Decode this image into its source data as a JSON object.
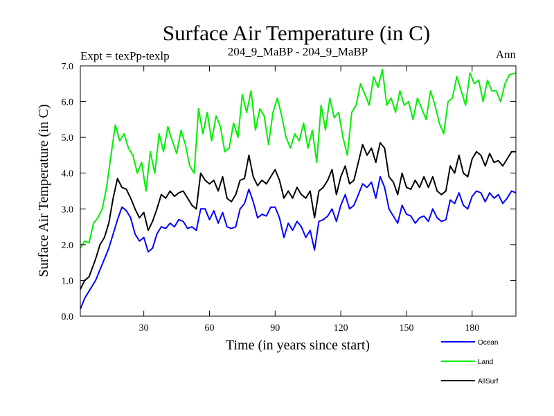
{
  "chart_data": {
    "type": "line",
    "title": "Surface Air Temperature (in C)",
    "left_label": "Expt = texPp-texlp",
    "center_label": "204_9_MaBP - 204_9_MaBP",
    "right_label": "Ann",
    "xlabel": "Time (in years since start)",
    "ylabel": "Surface Air Temperature (in C)",
    "xlim": [
      1,
      200
    ],
    "ylim": [
      0.0,
      7.0
    ],
    "xticks": [
      30,
      60,
      90,
      120,
      150,
      180
    ],
    "xtick_labels": [
      "30",
      "60",
      "90",
      "120",
      "150",
      "180"
    ],
    "yticks": [
      0,
      1,
      2,
      3,
      4,
      5,
      6,
      7
    ],
    "ytick_labels": [
      "0.0",
      "1.0",
      "2.0",
      "3.0",
      "4.0",
      "5.0",
      "6.0",
      "7.0"
    ],
    "legend": [
      {
        "name": "Ocean",
        "color": "#0000ff"
      },
      {
        "name": "Land",
        "color": "#00ee00"
      },
      {
        "name": "AllSurf",
        "color": "#000000"
      }
    ],
    "series": [
      {
        "name": "Ocean",
        "color": "#0000ff",
        "x": [
          1,
          3,
          5,
          8,
          10,
          12,
          14,
          16,
          18,
          20,
          22,
          24,
          26,
          28,
          30,
          32,
          34,
          36,
          38,
          40,
          42,
          44,
          46,
          48,
          50,
          52,
          54,
          56,
          58,
          60,
          62,
          64,
          66,
          68,
          70,
          72,
          74,
          76,
          78,
          80,
          82,
          84,
          86,
          88,
          90,
          92,
          94,
          96,
          98,
          100,
          102,
          104,
          106,
          108,
          110,
          112,
          114,
          116,
          118,
          120,
          122,
          124,
          126,
          128,
          130,
          132,
          134,
          136,
          138,
          140,
          142,
          144,
          146,
          148,
          150,
          152,
          154,
          156,
          158,
          160,
          162,
          164,
          166,
          168,
          170,
          172,
          174,
          176,
          178,
          180,
          182,
          184,
          186,
          188,
          190,
          192,
          194,
          196,
          198,
          200
        ],
        "values": [
          0.2,
          0.5,
          0.7,
          1.0,
          1.3,
          1.6,
          1.9,
          2.3,
          2.7,
          3.05,
          2.95,
          2.75,
          2.3,
          2.1,
          2.2,
          1.8,
          1.9,
          2.3,
          2.5,
          2.45,
          2.6,
          2.5,
          2.7,
          2.65,
          2.45,
          2.5,
          2.4,
          3.0,
          3.0,
          2.7,
          2.95,
          2.6,
          2.9,
          2.5,
          2.45,
          2.5,
          3.0,
          3.15,
          3.55,
          3.2,
          2.75,
          2.85,
          2.8,
          3.05,
          3.05,
          2.75,
          2.2,
          2.6,
          2.4,
          2.65,
          2.5,
          2.2,
          2.4,
          1.85,
          2.65,
          2.7,
          2.8,
          3.0,
          2.65,
          3.1,
          3.4,
          3.0,
          3.1,
          3.4,
          3.7,
          3.6,
          3.75,
          3.3,
          3.9,
          3.6,
          3.0,
          2.8,
          2.6,
          3.1,
          2.85,
          2.8,
          2.6,
          2.75,
          2.8,
          2.65,
          3.0,
          2.75,
          2.65,
          2.7,
          3.25,
          3.15,
          3.45,
          3.1,
          3.0,
          3.35,
          3.5,
          3.45,
          3.2,
          3.45,
          3.3,
          3.4,
          3.15,
          3.3,
          3.5,
          3.45
        ]
      },
      {
        "name": "Land",
        "color": "#00ee00",
        "x": [
          1,
          3,
          5,
          7,
          9,
          11,
          13,
          15,
          17,
          19,
          21,
          23,
          25,
          27,
          29,
          31,
          33,
          35,
          37,
          39,
          41,
          43,
          45,
          47,
          49,
          51,
          53,
          55,
          57,
          59,
          61,
          63,
          65,
          67,
          69,
          71,
          73,
          75,
          77,
          79,
          81,
          83,
          85,
          87,
          89,
          91,
          93,
          95,
          97,
          99,
          101,
          103,
          105,
          107,
          109,
          111,
          113,
          115,
          117,
          119,
          121,
          123,
          125,
          127,
          129,
          131,
          133,
          135,
          137,
          139,
          141,
          143,
          145,
          147,
          149,
          151,
          153,
          155,
          157,
          159,
          161,
          163,
          165,
          167,
          169,
          171,
          173,
          175,
          177,
          179,
          181,
          183,
          185,
          187,
          189,
          191,
          193,
          195,
          197,
          200
        ],
        "values": [
          1.9,
          2.1,
          2.05,
          2.6,
          2.75,
          3.0,
          3.6,
          4.5,
          5.35,
          4.9,
          5.1,
          4.7,
          4.5,
          4.0,
          4.3,
          3.5,
          4.6,
          4.0,
          5.1,
          4.6,
          5.3,
          4.9,
          4.55,
          5.2,
          4.8,
          4.2,
          4.0,
          5.8,
          5.1,
          5.7,
          4.9,
          5.6,
          5.3,
          4.6,
          4.7,
          5.4,
          5.0,
          6.2,
          5.7,
          6.3,
          5.2,
          5.8,
          5.6,
          4.8,
          5.7,
          6.1,
          5.6,
          5.0,
          4.7,
          5.1,
          4.9,
          5.4,
          4.7,
          5.2,
          4.3,
          5.9,
          5.2,
          6.1,
          5.55,
          5.7,
          5.0,
          4.5,
          5.7,
          5.9,
          6.5,
          6.2,
          5.9,
          6.7,
          6.4,
          6.9,
          5.9,
          6.1,
          5.7,
          6.3,
          5.9,
          6.0,
          5.5,
          6.1,
          5.8,
          5.5,
          6.3,
          5.9,
          5.4,
          5.1,
          6.0,
          6.1,
          6.7,
          6.3,
          5.9,
          6.8,
          6.5,
          6.6,
          6.0,
          6.6,
          6.3,
          6.3,
          6.0,
          6.5,
          6.75,
          6.8
        ]
      },
      {
        "name": "AllSurf",
        "color": "#000000",
        "x": [
          1,
          3,
          5,
          8,
          10,
          12,
          14,
          16,
          18,
          20,
          22,
          24,
          26,
          28,
          30,
          32,
          34,
          36,
          38,
          40,
          42,
          44,
          46,
          48,
          50,
          52,
          54,
          56,
          58,
          60,
          62,
          64,
          66,
          68,
          70,
          72,
          74,
          76,
          78,
          80,
          82,
          84,
          86,
          88,
          90,
          92,
          94,
          96,
          98,
          100,
          102,
          104,
          106,
          108,
          110,
          112,
          114,
          116,
          118,
          120,
          122,
          124,
          126,
          128,
          130,
          132,
          134,
          136,
          138,
          140,
          142,
          144,
          146,
          148,
          150,
          152,
          154,
          156,
          158,
          160,
          162,
          164,
          166,
          168,
          170,
          172,
          174,
          176,
          178,
          180,
          182,
          184,
          186,
          188,
          190,
          192,
          194,
          196,
          198,
          200
        ],
        "values": [
          0.75,
          1.0,
          1.1,
          1.6,
          2.0,
          2.2,
          2.6,
          3.3,
          3.85,
          3.6,
          3.55,
          3.3,
          3.0,
          2.75,
          2.9,
          2.4,
          2.65,
          3.0,
          3.4,
          3.3,
          3.5,
          3.35,
          3.45,
          3.5,
          3.3,
          3.1,
          3.0,
          4.0,
          3.8,
          3.7,
          3.8,
          3.5,
          3.9,
          3.3,
          3.2,
          3.4,
          3.8,
          3.85,
          4.5,
          3.9,
          3.65,
          3.8,
          3.7,
          3.9,
          4.1,
          3.8,
          3.3,
          3.5,
          3.3,
          3.6,
          3.4,
          3.3,
          3.5,
          2.75,
          3.5,
          3.6,
          3.8,
          4.1,
          3.4,
          3.9,
          4.2,
          3.7,
          3.8,
          4.3,
          4.8,
          4.5,
          4.7,
          4.3,
          4.85,
          4.7,
          3.9,
          3.75,
          3.4,
          4.0,
          3.6,
          3.55,
          3.8,
          3.6,
          3.9,
          3.6,
          3.9,
          3.5,
          3.4,
          3.5,
          4.2,
          4.0,
          4.5,
          4.0,
          3.9,
          4.4,
          4.6,
          4.5,
          4.2,
          4.55,
          4.3,
          4.35,
          4.2,
          4.4,
          4.6,
          4.6
        ]
      }
    ]
  }
}
